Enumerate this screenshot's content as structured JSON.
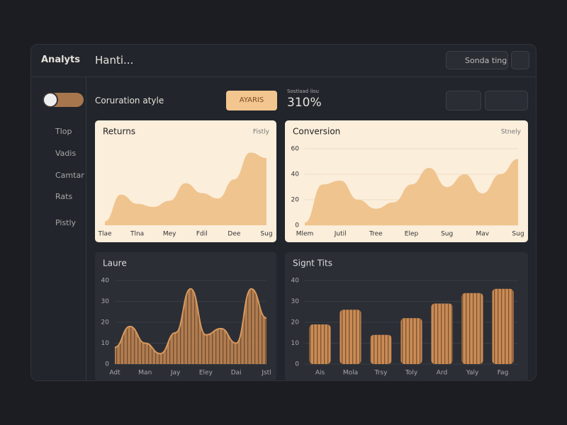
{
  "app": {
    "brand": "Analyts",
    "page_title": "Hanti...",
    "search": "Sonda ting"
  },
  "nav": [
    "Tlop",
    "Vadis",
    "Camtar",
    "Rats",
    "Pistly"
  ],
  "toolbar": {
    "label": "Coruration atyle",
    "button": "AYARIS",
    "stat_caption": "Sostlaad ilou",
    "stat": "310%"
  },
  "panels": [
    {
      "type": "area",
      "title": "Returns",
      "action": "Fistly",
      "theme": "light",
      "color": "#f0c48e",
      "categories": [
        "Tlae",
        null,
        "Tlna",
        null,
        "Mey",
        null,
        "Fdil",
        null,
        "Dee",
        null,
        "Sug"
      ],
      "values": [
        5,
        40,
        28,
        24,
        32,
        55,
        42,
        35,
        60,
        95,
        88
      ],
      "ylim": [
        0,
        100
      ]
    },
    {
      "type": "area",
      "title": "Conversion",
      "action": "Stnely",
      "theme": "light",
      "color": "#f0c48e",
      "categories": [
        "Mlem",
        null,
        "Jutil",
        null,
        "Tree",
        null,
        "Elep",
        null,
        "Sug",
        null,
        "Mav",
        null,
        "Sug"
      ],
      "values": [
        2,
        32,
        35,
        20,
        13,
        18,
        32,
        45,
        30,
        40,
        25,
        40,
        52
      ],
      "ylim": [
        0,
        60
      ],
      "yticks": [
        0,
        20,
        40,
        60
      ]
    },
    {
      "type": "line",
      "title": "Laure",
      "theme": "dark",
      "color": "#d99a5e",
      "categories": [
        "Adt",
        null,
        "Man",
        null,
        "Jay",
        null,
        "Eley",
        null,
        "Dai",
        null,
        "Jstl"
      ],
      "values": [
        8,
        18,
        10,
        5,
        15,
        36,
        14,
        17,
        10,
        36,
        22
      ],
      "ylim": [
        0,
        40
      ],
      "yticks": [
        0,
        10,
        20,
        30,
        40
      ]
    },
    {
      "type": "bar",
      "title": "Signt Tits",
      "theme": "dark",
      "color": "#d99a5e",
      "categories": [
        "Ais",
        "Mola",
        "Trsy",
        "Toly",
        "Ard",
        "Yaly",
        "Fag"
      ],
      "values": [
        19,
        26,
        14,
        22,
        29,
        34,
        36
      ],
      "ylim": [
        0,
        40
      ],
      "yticks": [
        0,
        10,
        20,
        30,
        40
      ]
    }
  ]
}
